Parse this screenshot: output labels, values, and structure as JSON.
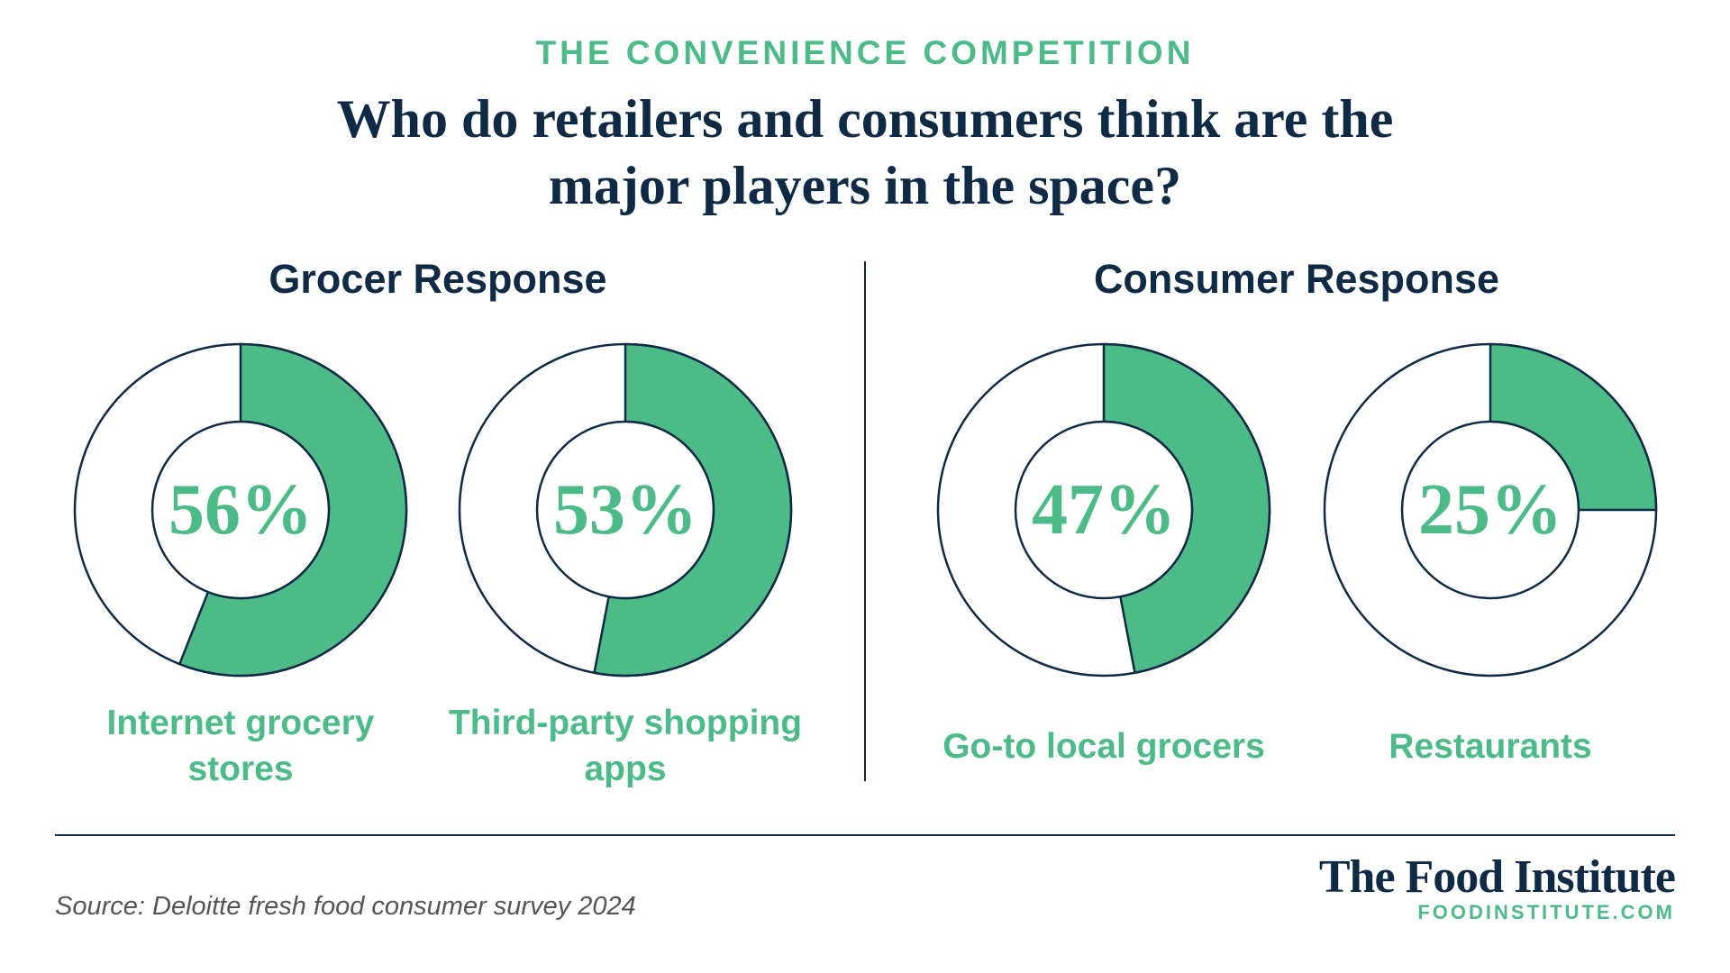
{
  "header": {
    "kicker": "THE CONVENIENCE COMPETITION",
    "title": "Who do retailers and consumers think are the major players in the space?"
  },
  "groups": [
    {
      "title": "Grocer Response"
    },
    {
      "title": "Consumer Response"
    }
  ],
  "chart_data": [
    {
      "type": "donut",
      "categories": [
        "Internet grocery stores"
      ],
      "values": [
        56
      ],
      "value_labels": [
        "56%"
      ],
      "color": "#4cbb87"
    },
    {
      "type": "donut",
      "categories": [
        "Third-party shopping apps"
      ],
      "values": [
        53
      ],
      "value_labels": [
        "53%"
      ],
      "color": "#4cbb87"
    },
    {
      "type": "donut",
      "categories": [
        "Go-to local grocers"
      ],
      "values": [
        47
      ],
      "value_labels": [
        "47%"
      ],
      "color": "#4cbb87"
    },
    {
      "type": "donut",
      "categories": [
        "Restaurants"
      ],
      "values": [
        25
      ],
      "value_labels": [
        "25%"
      ],
      "color": "#4cbb87"
    }
  ],
  "footer": {
    "source": "Source: Deloitte fresh food consumer survey 2024",
    "brand": "The Food Institute",
    "url": "FOODINSTITUTE.COM"
  }
}
